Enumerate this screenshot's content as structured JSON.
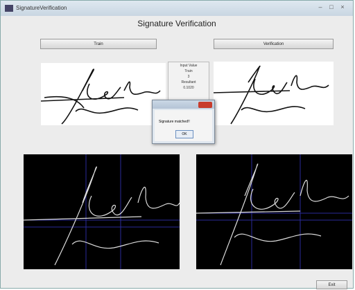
{
  "window": {
    "title": "SignatureVerification"
  },
  "header": {
    "title": "Signature Verification"
  },
  "buttons": {
    "train": "Train",
    "verify": "Verification",
    "exit": "Exit"
  },
  "panel": {
    "title": "Input Value",
    "mode": "Train",
    "count": "3",
    "result_label": "Resultant",
    "result": "0.1020"
  },
  "dialog": {
    "message": "Signature matched!!",
    "ok": "OK"
  }
}
